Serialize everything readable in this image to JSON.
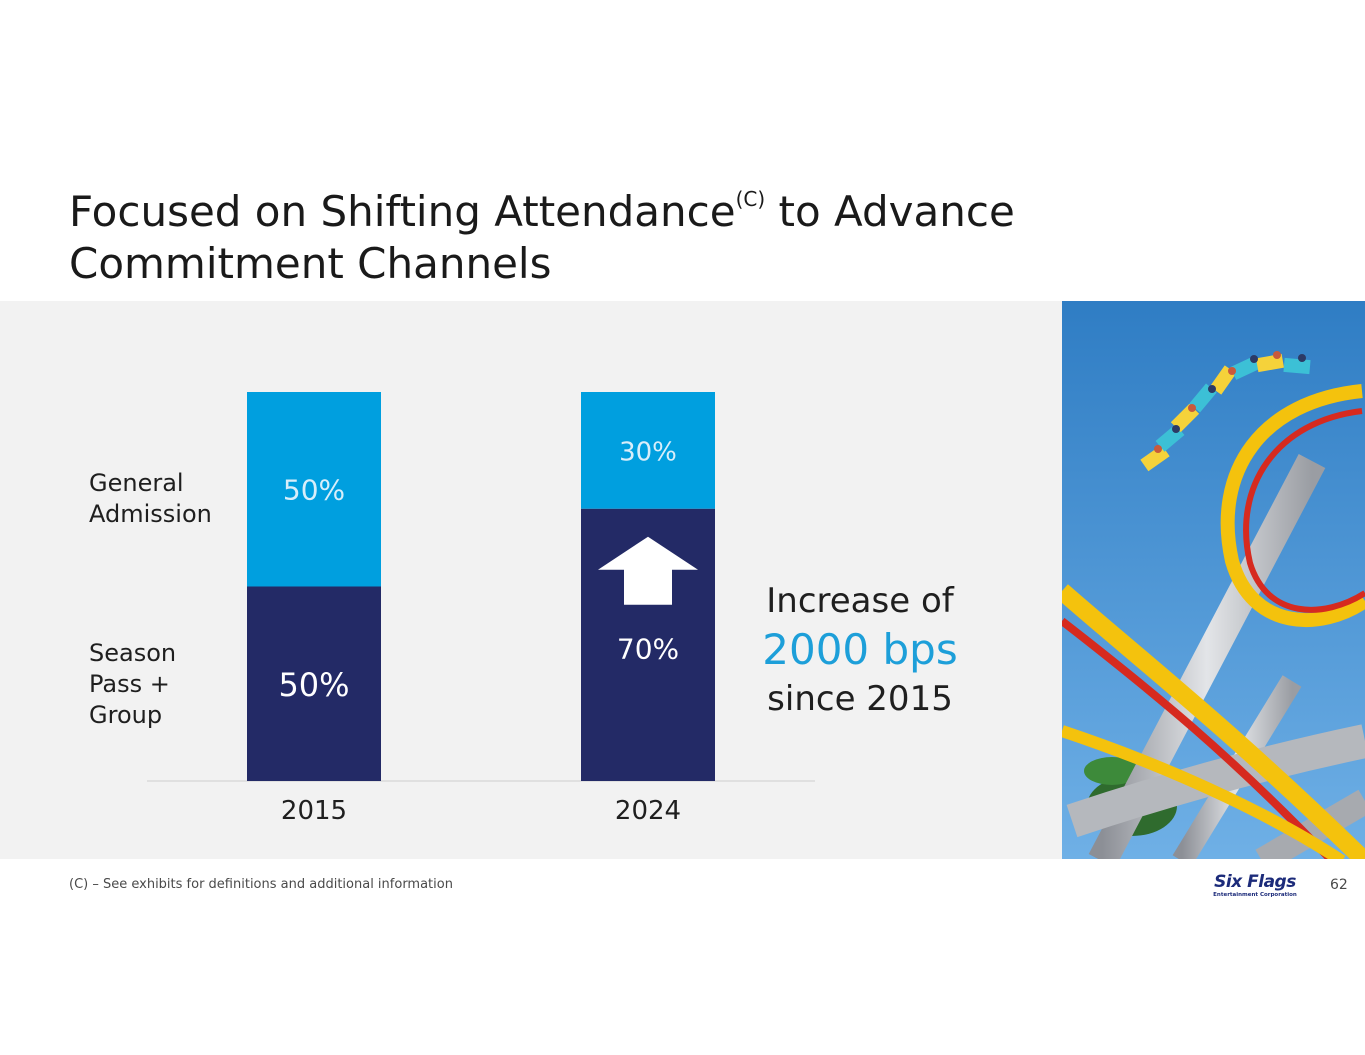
{
  "slide": {
    "title_part1": "Focused on Shifting Attendance",
    "title_superscript": "(C)",
    "title_part2": " to Advance Commitment Channels",
    "footnote": "(C) – See exhibits for definitions and additional information",
    "page_number": "62",
    "logo_brand": "Six Flags",
    "logo_sub": "Entertainment Corporation"
  },
  "row_labels": {
    "general": "General\nAdmission",
    "season": "Season\nPass +\nGroup"
  },
  "callout": {
    "line1": "Increase of",
    "line2": "2000 bps",
    "line3": "since 2015"
  },
  "colors": {
    "general_admission": "#009fdf",
    "season_pass": "#232a66",
    "panel_background": "#f2f2f2",
    "callout_accent": "#1d9fd9"
  },
  "chart_data": {
    "type": "bar",
    "stacked": true,
    "categories": [
      "2015",
      "2024"
    ],
    "series": [
      {
        "name": "Season Pass + Group",
        "values": [
          50,
          70
        ],
        "labels": [
          "50%",
          "70%"
        ]
      },
      {
        "name": "General Admission",
        "values": [
          50,
          30
        ],
        "labels": [
          "50%",
          "30%"
        ]
      }
    ],
    "ylim": [
      0,
      100
    ],
    "title": "",
    "xlabel": "",
    "ylabel": "",
    "grid": false,
    "legend": "left"
  }
}
